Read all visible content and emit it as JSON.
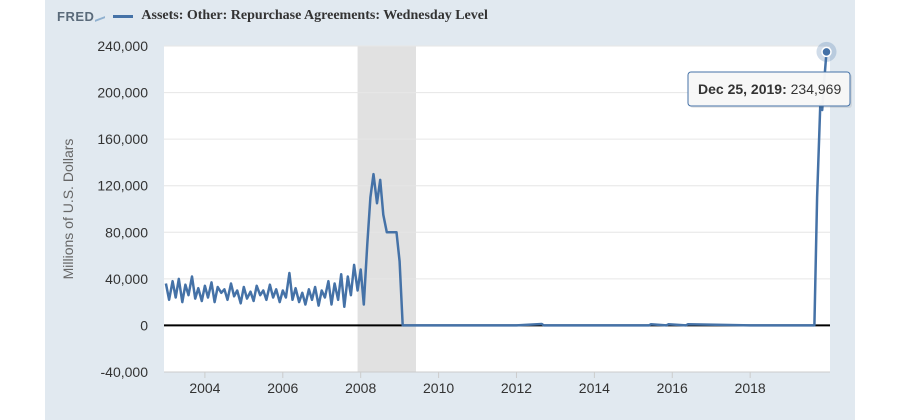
{
  "header": {
    "logo": "FRED",
    "series_title": "Assets: Other: Repurchase Agreements: Wednesday Level"
  },
  "chart_data": {
    "type": "line",
    "title": "Assets: Other: Repurchase Agreements: Wednesday Level",
    "ylabel": "Millions of U.S. Dollars",
    "xlabel": "",
    "xlim": [
      2002.95,
      2020.05
    ],
    "ylim": [
      -40000,
      240000
    ],
    "yticks": [
      240000,
      200000,
      160000,
      120000,
      80000,
      40000,
      0,
      -40000
    ],
    "ytick_labels": [
      "240,000",
      "200,000",
      "160,000",
      "120,000",
      "80,000",
      "40,000",
      "0",
      "-40,000"
    ],
    "xticks": [
      2004,
      2006,
      2008,
      2010,
      2012,
      2014,
      2016,
      2018
    ],
    "xtick_labels": [
      "2004",
      "2006",
      "2008",
      "2010",
      "2012",
      "2014",
      "2016",
      "2018"
    ],
    "recession": {
      "start": 2007.92,
      "end": 2009.42
    },
    "zero_line": 0,
    "grid": "horizontal",
    "series": [
      {
        "color": "#4572a7",
        "x": [
          2003.0,
          2003.08,
          2003.17,
          2003.25,
          2003.33,
          2003.42,
          2003.5,
          2003.58,
          2003.67,
          2003.75,
          2003.83,
          2003.92,
          2004.0,
          2004.08,
          2004.17,
          2004.25,
          2004.33,
          2004.42,
          2004.5,
          2004.58,
          2004.67,
          2004.75,
          2004.83,
          2004.92,
          2005.0,
          2005.08,
          2005.17,
          2005.25,
          2005.33,
          2005.42,
          2005.5,
          2005.58,
          2005.67,
          2005.75,
          2005.83,
          2005.92,
          2006.0,
          2006.08,
          2006.17,
          2006.25,
          2006.33,
          2006.42,
          2006.5,
          2006.58,
          2006.67,
          2006.75,
          2006.83,
          2006.92,
          2007.0,
          2007.08,
          2007.17,
          2007.25,
          2007.33,
          2007.42,
          2007.5,
          2007.58,
          2007.67,
          2007.75,
          2007.83,
          2007.92,
          2008.0,
          2008.08,
          2008.17,
          2008.25,
          2008.33,
          2008.42,
          2008.5,
          2008.58,
          2008.67,
          2008.75,
          2008.83,
          2008.92,
          2009.0,
          2009.08,
          2009.17,
          2010.0,
          2012.0,
          2012.65,
          2012.7,
          2014.0,
          2015.4,
          2015.45,
          2015.85,
          2015.9,
          2016.35,
          2016.4,
          2018.0,
          2019.65,
          2019.72,
          2019.8,
          2019.85,
          2019.9,
          2019.96
        ],
        "y": [
          36000,
          22000,
          38000,
          24000,
          40000,
          20000,
          35000,
          26000,
          42000,
          23000,
          32000,
          21000,
          34000,
          24000,
          37000,
          20000,
          33000,
          28000,
          31000,
          22000,
          36000,
          25000,
          30000,
          19000,
          33000,
          23000,
          29000,
          21000,
          34000,
          26000,
          30000,
          22000,
          35000,
          24000,
          31000,
          20000,
          30000,
          24000,
          45000,
          22000,
          32000,
          20000,
          28000,
          18000,
          31000,
          22000,
          33000,
          17000,
          30000,
          24000,
          38000,
          18000,
          36000,
          22000,
          44000,
          16000,
          42000,
          26000,
          52000,
          30000,
          48000,
          18000,
          70000,
          110000,
          130000,
          105000,
          125000,
          95000,
          80000,
          80000,
          80000,
          80000,
          55000,
          0,
          0,
          0,
          0,
          1200,
          0,
          0,
          0,
          1000,
          0,
          1000,
          0,
          1000,
          0,
          0,
          110000,
          190000,
          185000,
          210000,
          234969
        ]
      }
    ],
    "tooltip": {
      "date": "Dec 25, 2019:",
      "value": "234,969",
      "x": 2019.96,
      "y": 234969
    }
  }
}
